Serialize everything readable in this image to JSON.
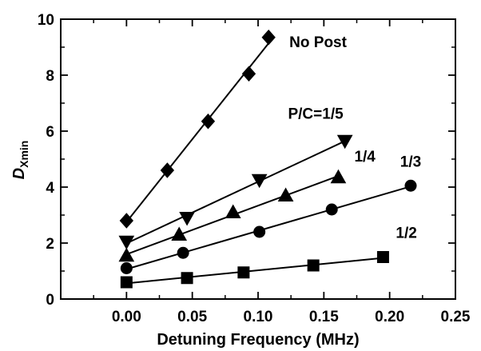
{
  "chart_data": {
    "type": "line",
    "title": "",
    "xlabel": "Detuning Frequency  (MHz)",
    "ylabel_main": "D",
    "ylabel_sub": "Xmin",
    "xlim": [
      -0.05,
      0.25
    ],
    "ylim": [
      0,
      10
    ],
    "xticks": [
      0.0,
      0.05,
      0.1,
      0.15,
      0.2,
      0.25
    ],
    "xtick_labels": [
      "0.00",
      "0.05",
      "0.10",
      "0.15",
      "0.20",
      "0.25"
    ],
    "yticks": [
      0,
      2,
      4,
      6,
      8,
      10
    ],
    "ytick_labels": [
      "0",
      "2",
      "4",
      "6",
      "8",
      "10"
    ],
    "grid": false,
    "legend": "none",
    "series": [
      {
        "name": "No Post",
        "marker": "diamond",
        "x": [
          0.0,
          0.031,
          0.062,
          0.093,
          0.108
        ],
        "y": [
          2.8,
          4.6,
          6.35,
          8.05,
          9.35
        ]
      },
      {
        "name": "P/C=1/5",
        "marker": "triangle-down",
        "x": [
          0.0,
          0.046,
          0.101,
          0.166
        ],
        "y": [
          2.05,
          2.9,
          4.25,
          5.65
        ]
      },
      {
        "name": "1/4",
        "marker": "triangle-up",
        "x": [
          0.0,
          0.04,
          0.081,
          0.121,
          0.161
        ],
        "y": [
          1.55,
          2.3,
          3.1,
          3.7,
          4.35
        ]
      },
      {
        "name": "1/3",
        "marker": "circle",
        "x": [
          0.0,
          0.043,
          0.101,
          0.156,
          0.216
        ],
        "y": [
          1.1,
          1.65,
          2.4,
          3.2,
          4.05
        ]
      },
      {
        "name": "1/2",
        "marker": "square",
        "x": [
          0.0,
          0.046,
          0.089,
          0.142,
          0.195
        ],
        "y": [
          0.6,
          0.75,
          0.95,
          1.2,
          1.5
        ]
      }
    ]
  }
}
